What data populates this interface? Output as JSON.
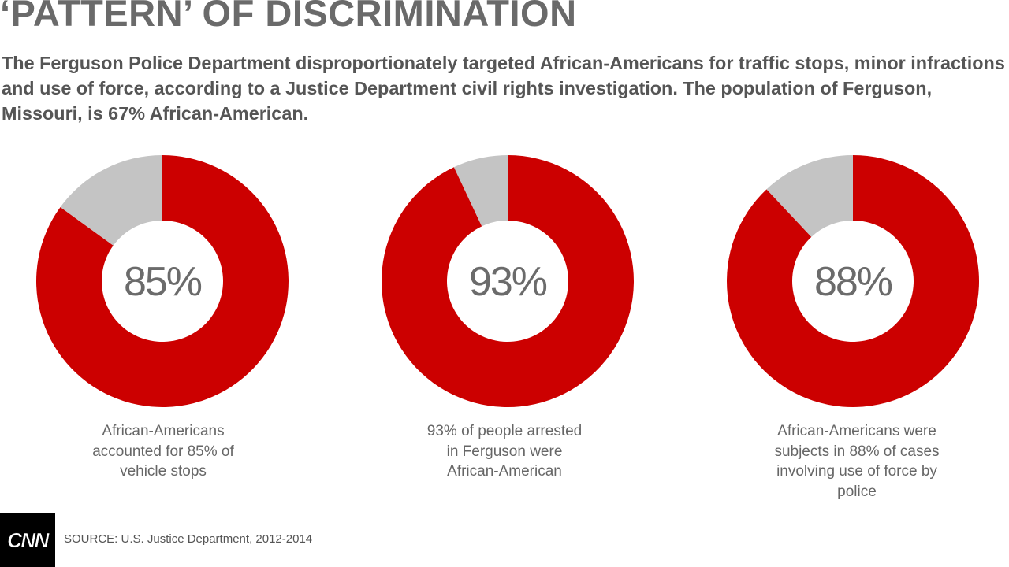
{
  "title": "‘PATTERN’ OF DISCRIMINATION",
  "subtitle": "The Ferguson Police Department disproportionately targeted African-Americans for traffic stops, minor infractions and use of force, according to a Justice Department civil rights investigation. The population of Ferguson, Missouri, is 67% African-American.",
  "colors": {
    "primary": "#cc0000",
    "remainder": "#c4c4c4",
    "text": "#666666"
  },
  "chart_data": [
    {
      "type": "pie",
      "value": 85,
      "remainder": 15,
      "center_label": "85%",
      "caption": "African-Americans accounted for 85% of vehicle stops"
    },
    {
      "type": "pie",
      "value": 93,
      "remainder": 7,
      "center_label": "93%",
      "caption": "93% of people arrested in Ferguson were African-American"
    },
    {
      "type": "pie",
      "value": 88,
      "remainder": 12,
      "center_label": "88%",
      "caption": "African-Americans were subjects in 88% of cases involving use of force by police"
    }
  ],
  "footer": {
    "logo_text": "CNN",
    "source": "SOURCE: U.S. Justice Department, 2012-2014"
  }
}
